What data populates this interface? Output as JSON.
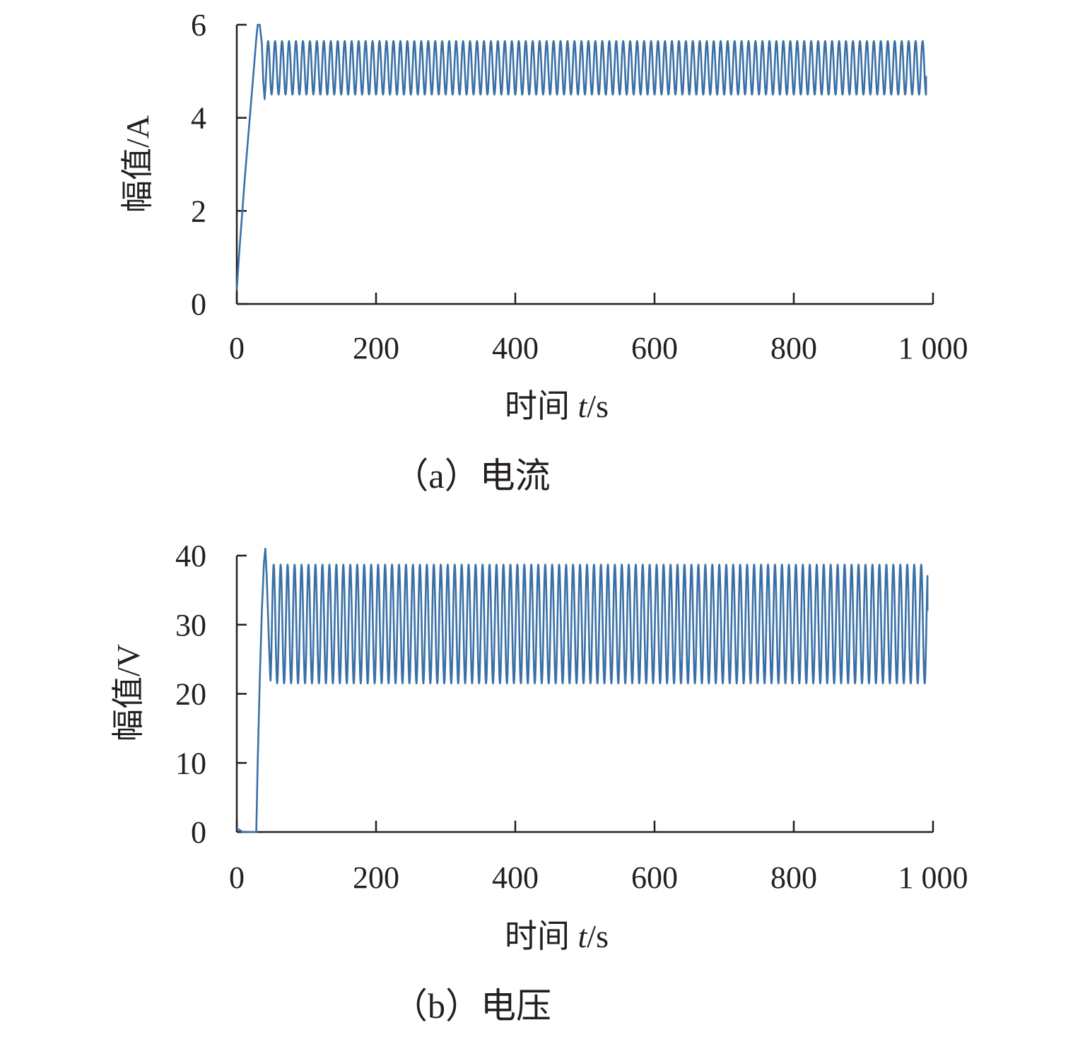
{
  "chart_data": [
    {
      "type": "line",
      "caption": "（a）电流",
      "xlabel_prefix": "时间 ",
      "xlabel_var": "t",
      "xlabel_unit": "/s",
      "ylabel": "幅值/A",
      "xlim": [
        0,
        1000
      ],
      "ylim": [
        0,
        6
      ],
      "xticks": [
        0,
        200,
        400,
        600,
        800,
        1000
      ],
      "xtick_labels": [
        "0",
        "200",
        "400",
        "600",
        "800",
        "1 000"
      ],
      "yticks": [
        0,
        2,
        4,
        6
      ],
      "ytick_labels": [
        "0",
        "2",
        "4",
        "6"
      ],
      "grid": false,
      "legend": "none",
      "color": "#3a70a6",
      "series": [
        {
          "start": [
            [
              0,
              0.3
            ],
            [
              3,
              1.0
            ],
            [
              12,
              2.8
            ],
            [
              22,
              4.6
            ],
            [
              28,
              5.7
            ],
            [
              30,
              6.0
            ],
            [
              33,
              6.0
            ],
            [
              36,
              5.6
            ],
            [
              38,
              4.8
            ],
            [
              40,
              4.4
            ]
          ],
          "oscillation": {
            "from": 40,
            "to": 990,
            "period": 10,
            "min": 4.5,
            "max": 5.65,
            "end_value": 4.9
          }
        }
      ]
    },
    {
      "type": "line",
      "caption": "（b）电压",
      "xlabel_prefix": "时间 ",
      "xlabel_var": "t",
      "xlabel_unit": "/s",
      "ylabel": "幅值/V",
      "xlim": [
        0,
        1000
      ],
      "ylim": [
        0,
        40
      ],
      "xticks": [
        0,
        200,
        400,
        600,
        800,
        1000
      ],
      "xtick_labels": [
        "0",
        "200",
        "400",
        "600",
        "800",
        "1 000"
      ],
      "yticks": [
        0,
        10,
        20,
        30,
        40
      ],
      "ytick_labels": [
        "0",
        "10",
        "20",
        "30",
        "40"
      ],
      "grid": false,
      "legend": "none",
      "color": "#3a70a6",
      "series": [
        {
          "start": [
            [
              0,
              0.5
            ],
            [
              4,
              0.3
            ],
            [
              8,
              0.0
            ],
            [
              28,
              0.0
            ],
            [
              30,
              10.0
            ],
            [
              33,
              22.0
            ],
            [
              36,
              32.0
            ],
            [
              39,
              39.0
            ],
            [
              41,
              41.0
            ],
            [
              43,
              37.0
            ],
            [
              46,
              28.0
            ],
            [
              48,
              22.5
            ]
          ],
          "oscillation": {
            "from": 48,
            "to": 992,
            "period": 10,
            "min": 21.5,
            "max": 38.7,
            "end_value": 32.0
          }
        }
      ]
    }
  ]
}
